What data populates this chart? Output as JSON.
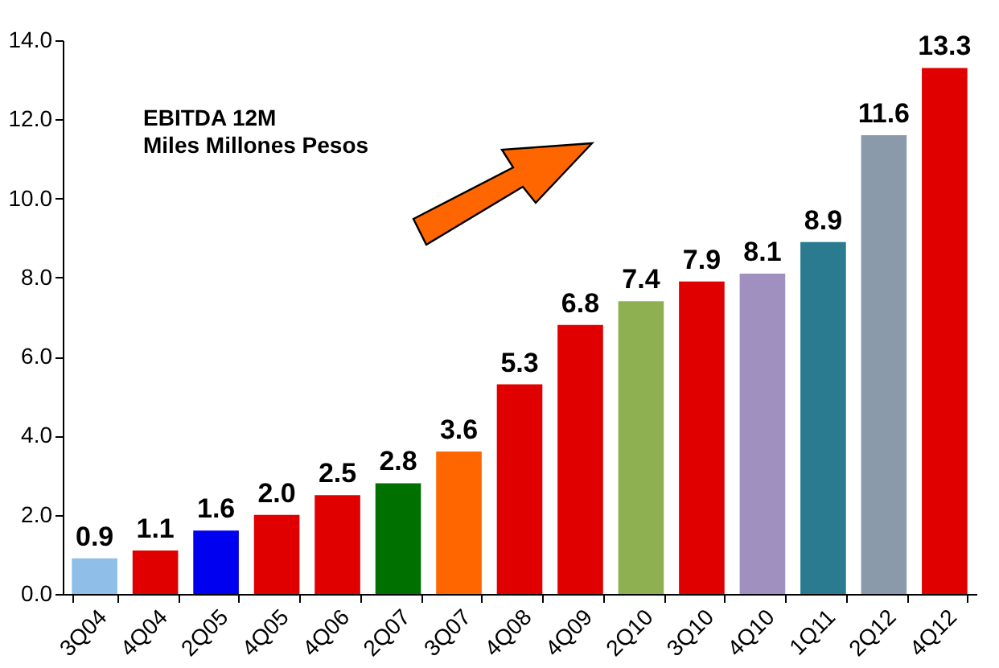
{
  "chart_data": {
    "type": "bar",
    "title": "EBITDA  12M",
    "subtitle": "Miles Millones Pesos",
    "categories": [
      "3Q04",
      "4Q04",
      "2Q05",
      "4Q05",
      "4Q06",
      "2Q07",
      "3Q07",
      "4Q08",
      "4Q09",
      "2Q10",
      "3Q10",
      "4Q10",
      "1Q11",
      "2Q12",
      "4Q12"
    ],
    "values": [
      0.9,
      1.1,
      1.6,
      2.0,
      2.5,
      2.8,
      3.6,
      5.3,
      6.8,
      7.4,
      7.9,
      8.1,
      8.9,
      11.6,
      13.3
    ],
    "colors": [
      "#8fbfe8",
      "#e00000",
      "#0000f0",
      "#e00000",
      "#e00000",
      "#007000",
      "#ff6600",
      "#e00000",
      "#e00000",
      "#8fb050",
      "#e00000",
      "#a090c0",
      "#2a7a90",
      "#8a9aaa",
      "#e00000"
    ],
    "ylim": [
      0,
      14
    ],
    "yticks": [
      {
        "value": 0,
        "label": "0.0"
      },
      {
        "value": 2,
        "label": "2.0"
      },
      {
        "value": 4,
        "label": "4.0"
      },
      {
        "value": 6,
        "label": "6.0"
      },
      {
        "value": 8,
        "label": "8.0"
      },
      {
        "value": 10,
        "label": "10.0"
      },
      {
        "value": 12,
        "label": "12.0"
      },
      {
        "value": 14,
        "label": "14.0"
      }
    ],
    "value_labels": [
      "0.9",
      "1.1",
      "1.6",
      "2.0",
      "2.5",
      "2.8",
      "3.6",
      "5.3",
      "6.8",
      "7.4",
      "7.9",
      "8.1",
      "8.9",
      "11.6",
      "13.3"
    ]
  }
}
